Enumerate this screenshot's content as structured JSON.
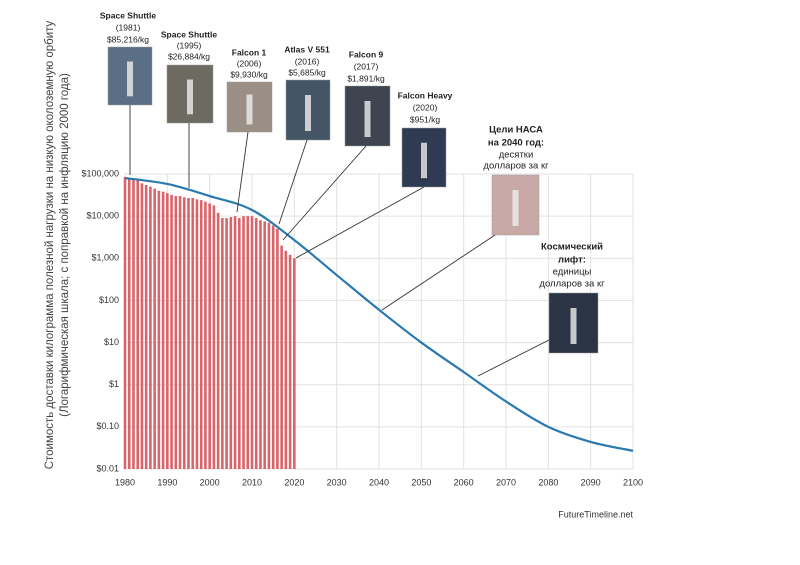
{
  "chart_data": {
    "type": "bar-line",
    "y_label": "Стоимость доставки килограмма полезной нагрузки на низкую околоземную орбиту",
    "y_label_note": "(Логарифмическая шкала; с поправкой на инфляцию 2000 года)",
    "source": "FutureTimeline.net",
    "log_y": true,
    "grid": true,
    "xlim": [
      1980,
      2100
    ],
    "xticks": [
      1980,
      1990,
      2000,
      2010,
      2020,
      2030,
      2040,
      2050,
      2060,
      2070,
      2080,
      2090,
      2100
    ],
    "ylim": [
      0.01,
      100000
    ],
    "yticks": [
      {
        "value": 0.01,
        "label": "$0.01"
      },
      {
        "value": 0.1,
        "label": "$0.10"
      },
      {
        "value": 1,
        "label": "$1"
      },
      {
        "value": 10,
        "label": "$10"
      },
      {
        "value": 100,
        "label": "$100"
      },
      {
        "value": 1000,
        "label": "$1,000"
      },
      {
        "value": 10000,
        "label": "$10,000"
      },
      {
        "value": 100000,
        "label": "$100,000"
      }
    ],
    "bars": {
      "color": "#d9646a",
      "x": [
        1980,
        1981,
        1982,
        1983,
        1984,
        1985,
        1986,
        1987,
        1988,
        1989,
        1990,
        1991,
        1992,
        1993,
        1994,
        1995,
        1996,
        1997,
        1998,
        1999,
        2000,
        2001,
        2002,
        2003,
        2004,
        2005,
        2006,
        2007,
        2008,
        2009,
        2010,
        2011,
        2012,
        2013,
        2014,
        2015,
        2016,
        2017,
        2018,
        2019,
        2020
      ],
      "values": [
        85000,
        80000,
        75000,
        70000,
        60000,
        55000,
        50000,
        45000,
        40000,
        38000,
        35000,
        32000,
        30000,
        30000,
        28000,
        27000,
        27000,
        25000,
        24000,
        22000,
        20000,
        18000,
        12000,
        9000,
        9000,
        9500,
        10000,
        9000,
        10000,
        10000,
        10000,
        9000,
        8000,
        7500,
        7000,
        6000,
        5000,
        2000,
        1500,
        1200,
        1000
      ]
    },
    "curve": {
      "color": "#2a7ab0",
      "x": [
        1980,
        1990,
        2000,
        2010,
        2020,
        2030,
        2040,
        2050,
        2060,
        2070,
        2080,
        2090,
        2100
      ],
      "values": [
        80000,
        58000,
        30000,
        14000,
        2700,
        400,
        60,
        10,
        2,
        0.4,
        0.1,
        0.044,
        0.027
      ]
    },
    "annotations": [
      {
        "title": "Space Shuttle",
        "year": "(1981)",
        "cost": "$85,216/kg"
      },
      {
        "title": "Space Shuttle",
        "year": "(1995)",
        "cost": "$26,884/kg"
      },
      {
        "title": "Falcon 1",
        "year": "(2006)",
        "cost": "$9,930/kg"
      },
      {
        "title": "Atlas V 551",
        "year": "(2016)",
        "cost": "$5,685/kg"
      },
      {
        "title": "Falcon 9",
        "year": "(2017)",
        "cost": "$1,891/kg"
      },
      {
        "title": "Falcon Heavy",
        "year": "(2020)",
        "cost": "$951/kg"
      },
      {
        "title": "Цели НАСА",
        "year": "на 2040 год:",
        "cost": "десятки",
        "extra": "долларов за кг"
      },
      {
        "title": "Космический",
        "year": "лифт:",
        "cost": "единицы",
        "extra": "долларов за кг"
      }
    ]
  }
}
